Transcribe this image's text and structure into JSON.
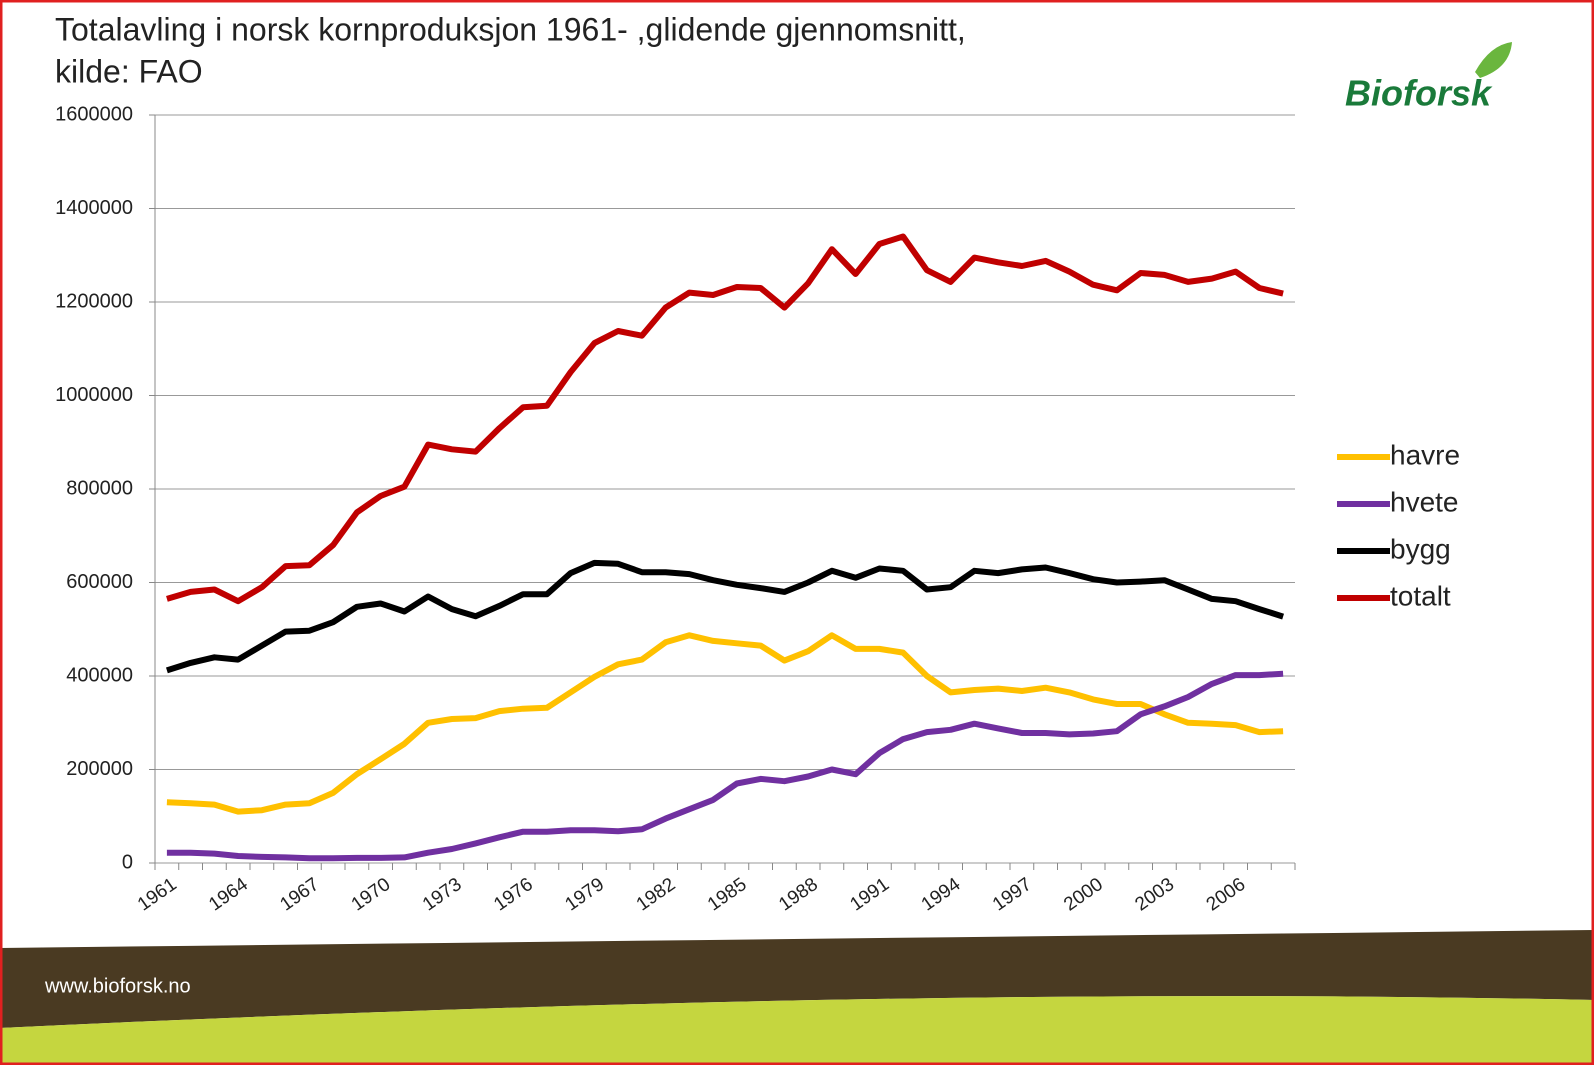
{
  "chart_data": {
    "type": "line",
    "title": [
      "Totalavling i norsk kornproduksjon 1961- ,glidende gjennomsnitt,",
      "kilde: FAO"
    ],
    "logo": "Bioforsk",
    "footer": "www.bioforsk.no",
    "categories": [
      "1961",
      null,
      null,
      "1964",
      null,
      null,
      "1967",
      null,
      null,
      "1970",
      null,
      null,
      "1973",
      null,
      null,
      "1976",
      null,
      null,
      "1979",
      null,
      null,
      "1982",
      null,
      null,
      "1985",
      null,
      null,
      "1988",
      null,
      null,
      "1991",
      null,
      null,
      "1994",
      null,
      null,
      "1997",
      null,
      null,
      "2000",
      null,
      null,
      "2003",
      null,
      null,
      "2006",
      null,
      null
    ],
    "ylim": [
      0,
      1600000
    ],
    "yticks": [
      0,
      200000,
      400000,
      600000,
      800000,
      1000000,
      1200000,
      1400000,
      1600000
    ],
    "grid": true,
    "legend": "right",
    "series": [
      {
        "name": "havre",
        "color": "#ffc000",
        "values": [
          130000,
          128000,
          125000,
          110000,
          113000,
          125000,
          128000,
          150000,
          190000,
          222000,
          255000,
          300000,
          308000,
          310000,
          325000,
          330000,
          332000,
          365000,
          398000,
          425000,
          435000,
          472000,
          487000,
          475000,
          470000,
          465000,
          433000,
          453000,
          487000,
          458000,
          458000,
          450000,
          400000,
          365000,
          370000,
          373000,
          368000,
          375000,
          365000,
          350000,
          340000,
          340000,
          318000,
          300000,
          298000,
          295000,
          280000,
          282000
        ]
      },
      {
        "name": "hvete",
        "color": "#7030a0",
        "values": [
          22000,
          22000,
          20000,
          15000,
          13000,
          12000,
          10000,
          10000,
          11000,
          11000,
          12000,
          22000,
          30000,
          42000,
          55000,
          67000,
          67000,
          70000,
          70000,
          68000,
          72000,
          95000,
          115000,
          135000,
          170000,
          180000,
          175000,
          185000,
          200000,
          190000,
          235000,
          265000,
          280000,
          285000,
          298000,
          288000,
          278000,
          278000,
          275000,
          277000,
          282000,
          318000,
          335000,
          355000,
          383000,
          402000,
          402000,
          405000
        ]
      },
      {
        "name": "bygg",
        "color": "#000000",
        "values": [
          412000,
          428000,
          440000,
          435000,
          465000,
          495000,
          497000,
          515000,
          548000,
          555000,
          538000,
          570000,
          543000,
          528000,
          550000,
          575000,
          575000,
          620000,
          642000,
          640000,
          622000,
          622000,
          618000,
          605000,
          595000,
          588000,
          580000,
          600000,
          625000,
          610000,
          630000,
          625000,
          585000,
          590000,
          625000,
          620000,
          628000,
          632000,
          620000,
          607000,
          600000,
          602000,
          605000,
          585000,
          565000,
          560000,
          543000,
          527000
        ]
      },
      {
        "name": "totalt",
        "color": "#c00000",
        "values": [
          565000,
          580000,
          585000,
          560000,
          590000,
          635000,
          637000,
          680000,
          750000,
          785000,
          805000,
          895000,
          885000,
          880000,
          930000,
          975000,
          978000,
          1050000,
          1112000,
          1138000,
          1128000,
          1188000,
          1220000,
          1215000,
          1232000,
          1230000,
          1188000,
          1240000,
          1313000,
          1260000,
          1324000,
          1340000,
          1268000,
          1243000,
          1295000,
          1285000,
          1277000,
          1288000,
          1265000,
          1237000,
          1225000,
          1262000,
          1258000,
          1243000,
          1250000,
          1265000,
          1230000,
          1218000
        ]
      }
    ]
  }
}
